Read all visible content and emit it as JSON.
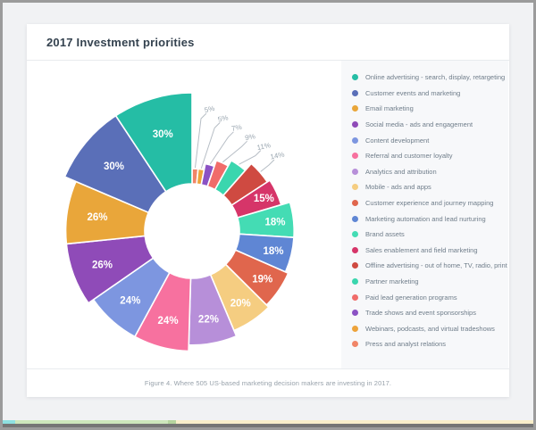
{
  "page": {
    "title": "2017 Investment priorities",
    "caption": "Figure 4. Where 505 US-based marketing decision makers are investing in 2017."
  },
  "chart_data": {
    "type": "pie",
    "variant": "variable-radius-donut",
    "title": "2017 Investment priorities",
    "unit": "%",
    "values_total": 323,
    "start_angle": "12-o'clock",
    "direction_in_legend_order": "counterclockwise",
    "legend_position": "right",
    "label_format": "{value}%",
    "inside_label_min_value": 15,
    "series": [
      {
        "label": "Online advertising - search, display, retargeting",
        "value": 30,
        "color": "#25bda5"
      },
      {
        "label": "Customer events and marketing",
        "value": 30,
        "color": "#5a6fb8"
      },
      {
        "label": "Email marketing",
        "value": 26,
        "color": "#e9a63a"
      },
      {
        "label": "Social media - ads and engagement",
        "value": 26,
        "color": "#8f4bb8"
      },
      {
        "label": "Content development",
        "value": 24,
        "color": "#7d96e0"
      },
      {
        "label": "Referral and customer loyalty",
        "value": 24,
        "color": "#f7719f"
      },
      {
        "label": "Analytics and attribution",
        "value": 22,
        "color": "#b78fd9"
      },
      {
        "label": "Mobile - ads and apps",
        "value": 20,
        "color": "#f5cd81"
      },
      {
        "label": "Customer experience and journey mapping",
        "value": 19,
        "color": "#e0664d"
      },
      {
        "label": "Marketing automation and lead nurturing",
        "value": 18,
        "color": "#5f86d4"
      },
      {
        "label": "Brand assets",
        "value": 18,
        "color": "#44dcb4"
      },
      {
        "label": "Sales enablement and field marketing",
        "value": 15,
        "color": "#d63569"
      },
      {
        "label": "Offline advertising - out of home, TV, radio, print",
        "value": 14,
        "color": "#cf4a41"
      },
      {
        "label": "Partner marketing",
        "value": 11,
        "color": "#3ad6ae"
      },
      {
        "label": "Paid lead generation programs",
        "value": 9,
        "color": "#f06c6a"
      },
      {
        "label": "Trade shows and event sponsorships",
        "value": 7,
        "color": "#8b52c4"
      },
      {
        "label": "Webinars, podcasts, and virtual tradeshows",
        "value": 5,
        "color": "#eda33b"
      },
      {
        "label": "Press and analyst relations",
        "value": 5,
        "color": "#f08568"
      }
    ],
    "inside_label_color": "#ffffff",
    "callout_text_color": "#9aa6b0",
    "callout_line_color": "#b6bdc5"
  },
  "footer_strip": {
    "segments": [
      {
        "name": "cyan-section",
        "color": "#8ee0e0",
        "width": 14
      },
      {
        "name": "green-section",
        "color": "#cde6bb",
        "width": 171
      },
      {
        "name": "green-marker",
        "color": "#b5d49e",
        "width": 9
      },
      {
        "name": "cream-section",
        "color": "#f8eeca",
        "width": null
      }
    ]
  }
}
